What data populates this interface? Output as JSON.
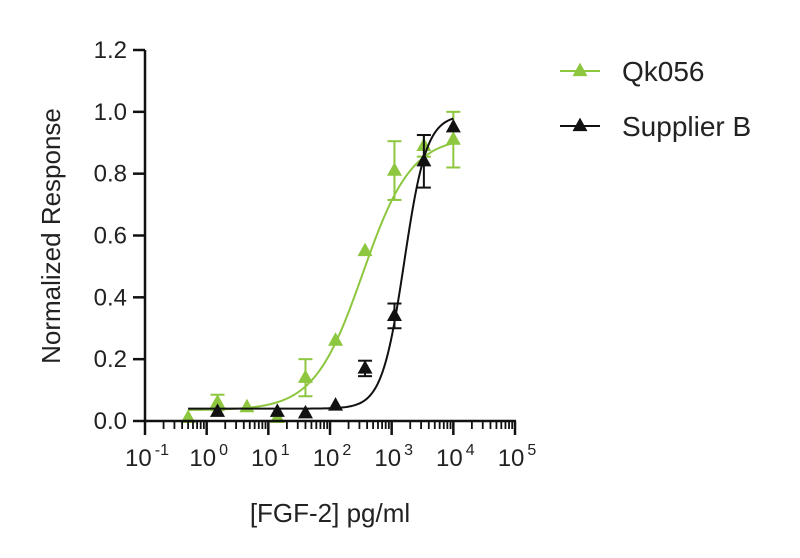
{
  "chart_data": {
    "type": "scatter",
    "title": "",
    "xlabel": "[FGF-2] pg/ml",
    "ylabel": "Normalized Response",
    "x_scale": "log",
    "xlim": [
      0.1,
      100000
    ],
    "ylim": [
      0.0,
      1.2
    ],
    "x_ticks": [
      {
        "base": "10",
        "exp": "-1"
      },
      {
        "base": "10",
        "exp": "0"
      },
      {
        "base": "10",
        "exp": "1"
      },
      {
        "base": "10",
        "exp": "2"
      },
      {
        "base": "10",
        "exp": "3"
      },
      {
        "base": "10",
        "exp": "4"
      },
      {
        "base": "10",
        "exp": "5"
      }
    ],
    "y_ticks": [
      "0.0",
      "0.2",
      "0.4",
      "0.6",
      "0.8",
      "1.0",
      "1.2"
    ],
    "legend_position": "top-right",
    "grid": false,
    "series": [
      {
        "name": "Qk056",
        "color": "#8dc63f",
        "marker": "triangle",
        "points": [
          {
            "x": 0.5,
            "y": 0.01,
            "err": 0.0
          },
          {
            "x": 1.5,
            "y": 0.06,
            "err": 0.025
          },
          {
            "x": 4.5,
            "y": 0.045,
            "err": 0.0
          },
          {
            "x": 14,
            "y": 0.01,
            "err": 0.0
          },
          {
            "x": 40,
            "y": 0.14,
            "err": 0.06
          },
          {
            "x": 123,
            "y": 0.26,
            "err": 0.0
          },
          {
            "x": 370,
            "y": 0.55,
            "err": 0.0
          },
          {
            "x": 1110,
            "y": 0.81,
            "err": 0.095
          },
          {
            "x": 3330,
            "y": 0.89,
            "err": 0.035
          },
          {
            "x": 10000,
            "y": 0.91,
            "err": 0.09
          }
        ],
        "curve": {
          "bottom": 0.035,
          "top": 0.92,
          "ec50": 340,
          "hill": 1.1
        }
      },
      {
        "name": "Supplier B",
        "color": "#111111",
        "marker": "triangle",
        "points": [
          {
            "x": 1.5,
            "y": 0.03,
            "err": 0.0
          },
          {
            "x": 14,
            "y": 0.03,
            "err": 0.0
          },
          {
            "x": 40,
            "y": 0.025,
            "err": 0.0
          },
          {
            "x": 123,
            "y": 0.05,
            "err": 0.0
          },
          {
            "x": 370,
            "y": 0.17,
            "err": 0.025
          },
          {
            "x": 1110,
            "y": 0.34,
            "err": 0.04
          },
          {
            "x": 3330,
            "y": 0.84,
            "err": 0.085
          },
          {
            "x": 10000,
            "y": 0.95,
            "err": 0.0
          }
        ],
        "curve": {
          "bottom": 0.04,
          "top": 0.99,
          "ec50": 1600,
          "hill": 2.4
        }
      }
    ]
  }
}
